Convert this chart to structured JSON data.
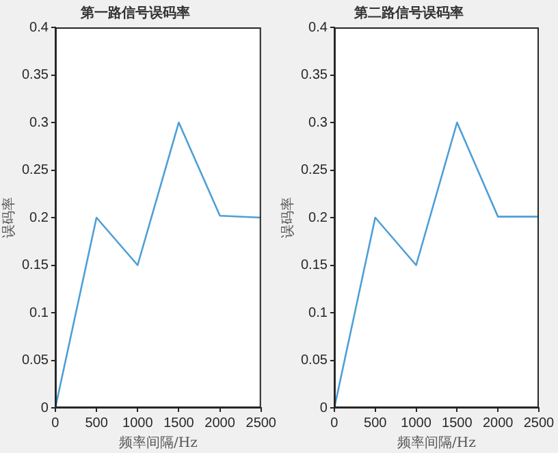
{
  "chart_data": [
    {
      "type": "line",
      "title": "第一路信号误码率",
      "xlabel": "频率间隔/Hz",
      "ylabel": "误码率",
      "x": [
        0,
        500,
        1000,
        1500,
        2000,
        2500
      ],
      "series": [
        {
          "color": "#4d9fd6",
          "values": [
            0,
            0.2,
            0.15,
            0.3,
            0.202,
            0.2
          ]
        }
      ],
      "xlim": [
        0,
        2500
      ],
      "xticks": [
        0,
        500,
        1000,
        1500,
        2000,
        2500
      ],
      "ylim": [
        0,
        0.4
      ],
      "yticks": [
        0,
        0.05,
        0.1,
        0.15,
        0.2,
        0.25,
        0.3,
        0.35,
        0.4
      ],
      "grid": false,
      "legend": false
    },
    {
      "type": "line",
      "title": "第二路信号误码率",
      "xlabel": "频率间隔/Hz",
      "ylabel": "误码率",
      "x": [
        0,
        500,
        1000,
        1500,
        2000,
        2500
      ],
      "series": [
        {
          "color": "#4d9fd6",
          "values": [
            0,
            0.2,
            0.15,
            0.3,
            0.201,
            0.201
          ]
        }
      ],
      "xlim": [
        0,
        2500
      ],
      "xticks": [
        0,
        500,
        1000,
        1500,
        2000,
        2500
      ],
      "ylim": [
        0,
        0.4
      ],
      "yticks": [
        0,
        0.05,
        0.1,
        0.15,
        0.2,
        0.25,
        0.3,
        0.35,
        0.4
      ],
      "grid": false,
      "legend": false
    }
  ]
}
